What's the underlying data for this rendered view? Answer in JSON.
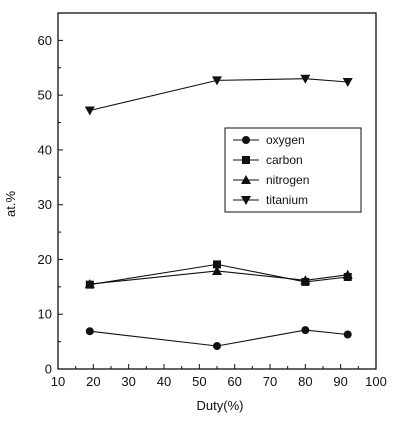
{
  "chart_data": {
    "type": "line",
    "title": "",
    "xlabel": "Duty(%)",
    "ylabel": "at.%",
    "xlim": [
      10,
      100
    ],
    "ylim": [
      0,
      65
    ],
    "xticks": [
      10,
      20,
      30,
      40,
      50,
      60,
      70,
      80,
      90,
      100
    ],
    "yticks": [
      0,
      10,
      20,
      30,
      40,
      50,
      60
    ],
    "x": [
      19,
      55,
      80,
      92
    ],
    "grid": false,
    "legend_position": "right",
    "series": [
      {
        "name": "oxygen",
        "marker": "circle",
        "color": "#111111",
        "values": [
          6.9,
          4.2,
          7.1,
          6.3
        ]
      },
      {
        "name": "carbon",
        "marker": "square",
        "color": "#111111",
        "values": [
          15.4,
          19.1,
          15.9,
          16.8
        ]
      },
      {
        "name": "nitrogen",
        "marker": "triangle-up",
        "color": "#111111",
        "values": [
          15.5,
          17.9,
          16.2,
          17.2
        ]
      },
      {
        "name": "titanium",
        "marker": "triangle-down",
        "color": "#111111",
        "values": [
          47.2,
          52.7,
          53.0,
          52.4
        ]
      }
    ]
  }
}
